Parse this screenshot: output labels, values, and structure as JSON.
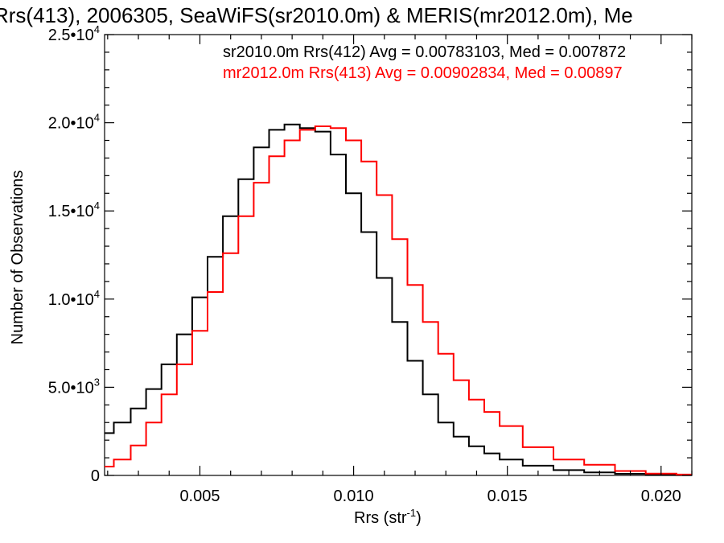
{
  "chart_data": {
    "type": "line",
    "title": "Rrs(413), 2006305, SeaWiFS(sr2010.0m) & MERIS(mr2012.0m), Me",
    "xlabel": "Rrs (str",
    "xlabel_sup": "-1",
    "xlabel_end": ")",
    "ylabel": "Number of Observations",
    "xlim": [
      0.0019,
      0.021
    ],
    "ylim": [
      0,
      25000
    ],
    "x_ticks": [
      {
        "value": 0.005,
        "label": "0.005"
      },
      {
        "value": 0.01,
        "label": "0.010"
      },
      {
        "value": 0.015,
        "label": "0.015"
      },
      {
        "value": 0.02,
        "label": "0.020"
      }
    ],
    "y_ticks": [
      {
        "value": 0,
        "label": "0",
        "exp": ""
      },
      {
        "value": 5000,
        "label": "5.0•10",
        "exp": "3"
      },
      {
        "value": 10000,
        "label": "1.0•10",
        "exp": "4"
      },
      {
        "value": 15000,
        "label": "1.5•10",
        "exp": "4"
      },
      {
        "value": 20000,
        "label": "2.0•10",
        "exp": "4"
      },
      {
        "value": 25000,
        "label": "2.5•10",
        "exp": "4"
      }
    ],
    "grid": false,
    "legend_position": "top-right",
    "series": [
      {
        "name": "sr2010.0m Rrs(412) Avg = 0.00783103, Med = 0.007872",
        "color": "#000000",
        "x": [
          0.0019,
          0.0025,
          0.003,
          0.0035,
          0.004,
          0.0045,
          0.005,
          0.0055,
          0.006,
          0.0065,
          0.007,
          0.0075,
          0.008,
          0.0085,
          0.009,
          0.0095,
          0.01,
          0.0105,
          0.011,
          0.0115,
          0.012,
          0.0125,
          0.013,
          0.0135,
          0.014,
          0.0145,
          0.015,
          0.016,
          0.017,
          0.018,
          0.019,
          0.02,
          0.021
        ],
        "y": [
          2400,
          3000,
          3800,
          4900,
          6300,
          8000,
          10100,
          12400,
          14700,
          16800,
          18600,
          19600,
          19900,
          19700,
          19500,
          18200,
          16000,
          13800,
          11200,
          8700,
          6500,
          4600,
          3000,
          2200,
          1650,
          1250,
          900,
          550,
          300,
          170,
          90,
          40,
          20
        ]
      },
      {
        "name": "mr2012.0m Rrs(413) Avg = 0.00902834, Med = 0.00897",
        "color": "#ff0000",
        "x": [
          0.0019,
          0.0025,
          0.003,
          0.0035,
          0.004,
          0.0045,
          0.005,
          0.0055,
          0.006,
          0.0065,
          0.007,
          0.0075,
          0.008,
          0.0085,
          0.009,
          0.0095,
          0.01,
          0.0105,
          0.011,
          0.0115,
          0.012,
          0.0125,
          0.013,
          0.0135,
          0.014,
          0.0145,
          0.015,
          0.016,
          0.017,
          0.018,
          0.019,
          0.02,
          0.021
        ],
        "y": [
          500,
          900,
          1700,
          3000,
          4600,
          6300,
          8200,
          10400,
          12600,
          14700,
          16600,
          18100,
          19000,
          19600,
          19800,
          19700,
          19000,
          17800,
          15900,
          13400,
          10800,
          8700,
          6900,
          5400,
          4300,
          3600,
          2800,
          1600,
          900,
          600,
          250,
          100,
          50
        ]
      }
    ]
  }
}
